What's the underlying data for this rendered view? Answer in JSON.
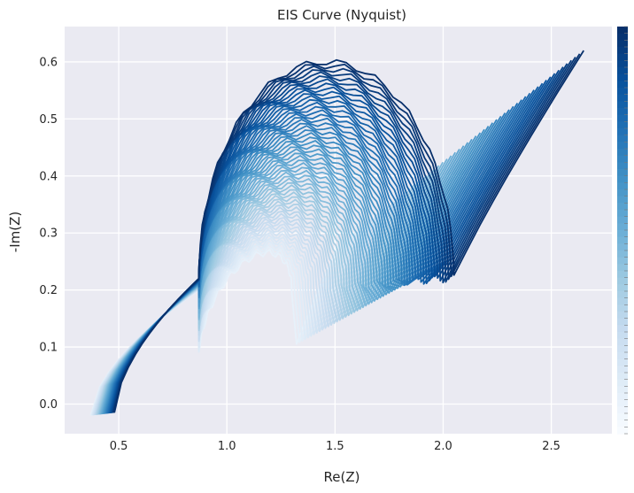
{
  "chart_data": {
    "type": "line",
    "title": "EIS Curve (Nyquist)",
    "xlabel": "Re(Z)",
    "ylabel": "-Im(Z)",
    "xlim": [
      0.25,
      2.78
    ],
    "ylim": [
      -0.052,
      0.662
    ],
    "xticks": [
      0.5,
      1.0,
      1.5,
      2.0,
      2.5
    ],
    "yticks": [
      0.0,
      0.1,
      0.2,
      0.3,
      0.4,
      0.5,
      0.6
    ],
    "xtick_labels": [
      "0.5",
      "1.0",
      "1.5",
      "2.0",
      "2.5"
    ],
    "ytick_labels": [
      "0.0",
      "0.1",
      "0.2",
      "0.3",
      "0.4",
      "0.5",
      "0.6"
    ],
    "grid": true,
    "background": "#EAEAF2",
    "colormap": "Blues",
    "colorbar_position": "right",
    "n_curves": 60,
    "series_template": {
      "start_point": [
        [
          0.37,
          -0.02
        ],
        [
          0.48,
          -0.015
        ]
      ],
      "knee_point": [
        [
          0.87,
          0.2
        ],
        [
          0.87,
          0.22
        ]
      ],
      "semicircle_peak": [
        [
          1.05,
          0.25
        ],
        [
          1.6,
          0.6
        ]
      ],
      "valley_point": [
        [
          1.3,
          0.08
        ],
        [
          2.05,
          0.22
        ]
      ],
      "end_point": [
        [
          1.52,
          0.28
        ],
        [
          2.65,
          0.62
        ]
      ]
    }
  }
}
